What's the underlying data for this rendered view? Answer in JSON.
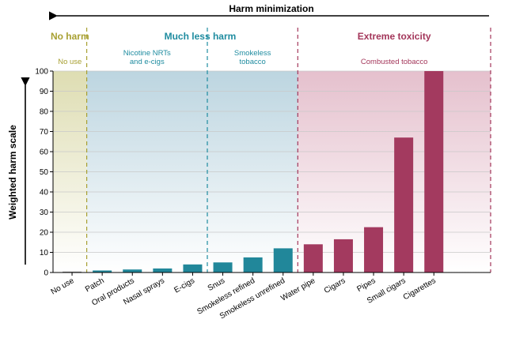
{
  "chart_data": {
    "type": "bar",
    "top_label": "Harm minimization",
    "ylabel": "Weighted harm scale",
    "ylim": [
      0,
      100
    ],
    "yticks": [
      0,
      10,
      20,
      30,
      40,
      50,
      60,
      70,
      80,
      90,
      100
    ],
    "grid": true,
    "categories": [
      "No use",
      "Patch",
      "Oral products",
      "Nasal sprays",
      "E-cigs",
      "Snus",
      "Smokeless refined",
      "Smokeless unrefined",
      "Water pipe",
      "Cigars",
      "Pipes",
      "Small cigars",
      "Cigarettes"
    ],
    "values": [
      0,
      1,
      1.5,
      2,
      4,
      5,
      7.5,
      12,
      14,
      16.5,
      22.5,
      67,
      100
    ],
    "bar_groups": [
      "none",
      "teal",
      "teal",
      "teal",
      "teal",
      "teal",
      "teal",
      "teal",
      "red",
      "red",
      "red",
      "red",
      "red"
    ],
    "regions": [
      {
        "title": "No harm",
        "subtitle": [
          "No use"
        ],
        "color": "#a8a032",
        "fill": "#e6e6c8",
        "first": 0,
        "last": 0
      },
      {
        "title": "Much less harm",
        "subtitle": [
          "Nicotine NRTs",
          "and e-cigs"
        ],
        "color": "#1f8ca0",
        "fill": "#c8dde6",
        "first": 1,
        "last": 4
      },
      {
        "title": "",
        "subtitle": [
          "Smokeless",
          "tobacco"
        ],
        "color": "#1f8ca0",
        "fill": "#c8dde6",
        "first": 5,
        "last": 7
      },
      {
        "title": "Extreme toxicity",
        "subtitle": [
          "Combusted tobacco"
        ],
        "color": "#a3365a",
        "fill": "#ecd3dc",
        "first": 8,
        "last": 12
      }
    ],
    "colors": {
      "teal": "#21879a",
      "red": "#a33a5f",
      "none": "#888888",
      "grid": "#c8c8c8",
      "axis": "#000000"
    }
  }
}
